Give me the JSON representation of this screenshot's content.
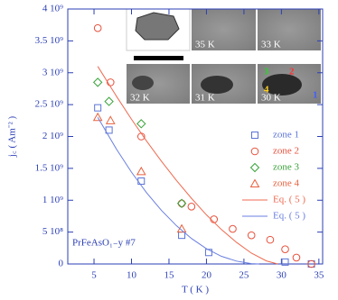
{
  "chart_data": {
    "type": "scatter",
    "x_label": "T ( K )",
    "y_label": "j꜀ ( Am⁻² )",
    "annotation": "PrFeAsO₁₋y #7",
    "xlim": [
      1.5,
      35.5
    ],
    "xticks": [
      5,
      10,
      15,
      20,
      25,
      30,
      35
    ],
    "ylim": [
      0,
      4000000000
    ],
    "yticks": [
      0,
      {
        "value": 500000000,
        "label": "5 10⁸"
      },
      {
        "value": 1000000000,
        "label": "1 10⁹"
      },
      {
        "value": 1500000000,
        "label": "1.5 10⁹"
      },
      {
        "value": 2000000000,
        "label": "2 10⁹"
      },
      {
        "value": 2500000000,
        "label": "2.5 10⁹"
      },
      {
        "value": 3000000000,
        "label": "3 10⁹"
      },
      {
        "value": 3500000000,
        "label": "3.5 10⁹"
      },
      {
        "value": 4000000000,
        "label": "4 10⁹"
      }
    ],
    "axis_color": "#2b3fb5",
    "series": [
      {
        "name": "zone 1",
        "color": "#5a73d6",
        "marker": "square",
        "x": [
          5.5,
          7,
          11.3,
          16.7,
          20.3,
          30.5,
          34
        ],
        "values": [
          2450000000,
          2100000000,
          1300000000,
          450000000,
          180000000,
          30000000,
          0
        ]
      },
      {
        "name": "zone 2",
        "color": "#e8503c",
        "marker": "circle",
        "x": [
          5.5,
          7.2,
          11.3,
          16.7,
          18,
          21,
          23.5,
          26,
          28.5,
          30.5,
          32,
          34
        ],
        "values": [
          3700000000,
          2850000000,
          2000000000,
          950000000,
          900000000,
          700000000,
          550000000,
          450000000,
          380000000,
          230000000,
          100000000,
          0
        ]
      },
      {
        "name": "zone 3",
        "color": "#3aa23a",
        "marker": "diamond",
        "x": [
          5.5,
          7,
          11.3,
          16.7
        ],
        "values": [
          2850000000,
          2550000000,
          2200000000,
          950000000
        ]
      },
      {
        "name": "zone 4",
        "color": "#e8603c",
        "marker": "triangle",
        "x": [
          5.5,
          7.2,
          11.3,
          16.7
        ],
        "values": [
          2300000000,
          2250000000,
          1450000000,
          550000000
        ]
      },
      {
        "name": "Eq. ( 5 )",
        "color": "#ef6a50",
        "marker": "line",
        "x": [
          5.5,
          8,
          10,
          12,
          14,
          16,
          18,
          20,
          22,
          24,
          26,
          28,
          29.5
        ],
        "values": [
          3100000000,
          2630000000,
          2270000000,
          1930000000,
          1610000000,
          1310000000,
          1030000000,
          770000000,
          540000000,
          340000000,
          170000000,
          48000000,
          0
        ]
      },
      {
        "name": "Eq. ( 5 )",
        "color": "#6a7fe0",
        "marker": "line",
        "x": [
          5.5,
          8,
          10,
          12,
          14,
          16,
          18,
          20,
          22,
          24,
          26,
          27
        ],
        "values": [
          2300000000,
          1800000000,
          1440000000,
          1120000000,
          840000000,
          600000000,
          400000000,
          240000000,
          120000000,
          45000000,
          5000000,
          0
        ]
      }
    ],
    "inset_labels": [
      "35 K",
      "33 K",
      "32 K",
      "31 K",
      "30 K"
    ],
    "inset_zone_labels": [
      {
        "text": "1",
        "color": "#4060ff"
      },
      {
        "text": "2",
        "color": "#ff3030"
      },
      {
        "text": "3",
        "color": "#30d030"
      },
      {
        "text": "4",
        "color": "#ffd020"
      }
    ]
  }
}
